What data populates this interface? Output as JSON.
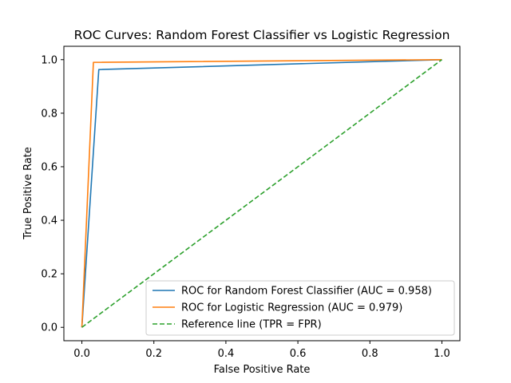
{
  "chart_data": {
    "type": "line",
    "title": "ROC Curves: Random Forest Classifier vs Logistic Regression",
    "xlabel": "False Positive Rate",
    "ylabel": "True Positive Rate",
    "xlim": [
      -0.05,
      1.05
    ],
    "ylim": [
      -0.05,
      1.05
    ],
    "xticks": [
      0.0,
      0.2,
      0.4,
      0.6,
      0.8,
      1.0
    ],
    "yticks": [
      0.0,
      0.2,
      0.4,
      0.6,
      0.8,
      1.0
    ],
    "xtick_labels": [
      "0.0",
      "0.2",
      "0.4",
      "0.6",
      "0.8",
      "1.0"
    ],
    "ytick_labels": [
      "0.0",
      "0.2",
      "0.4",
      "0.6",
      "0.8",
      "1.0"
    ],
    "grid": false,
    "legend_position": "lower-right",
    "series": [
      {
        "name": "ROC for Random Forest Classifier (AUC = 0.958)",
        "color": "#1f77b4",
        "style": "solid",
        "x": [
          0.0,
          0.047,
          1.0
        ],
        "y": [
          0.0,
          0.963,
          1.0
        ]
      },
      {
        "name": "ROC for Logistic Regression (AUC = 0.979)",
        "color": "#ff7f0e",
        "style": "solid",
        "x": [
          0.0,
          0.032,
          1.0
        ],
        "y": [
          0.0,
          0.99,
          1.0
        ]
      },
      {
        "name": "Reference line (TPR = FPR)",
        "color": "#2ca02c",
        "style": "dashed",
        "x": [
          0.0,
          1.0
        ],
        "y": [
          0.0,
          1.0
        ]
      }
    ]
  }
}
